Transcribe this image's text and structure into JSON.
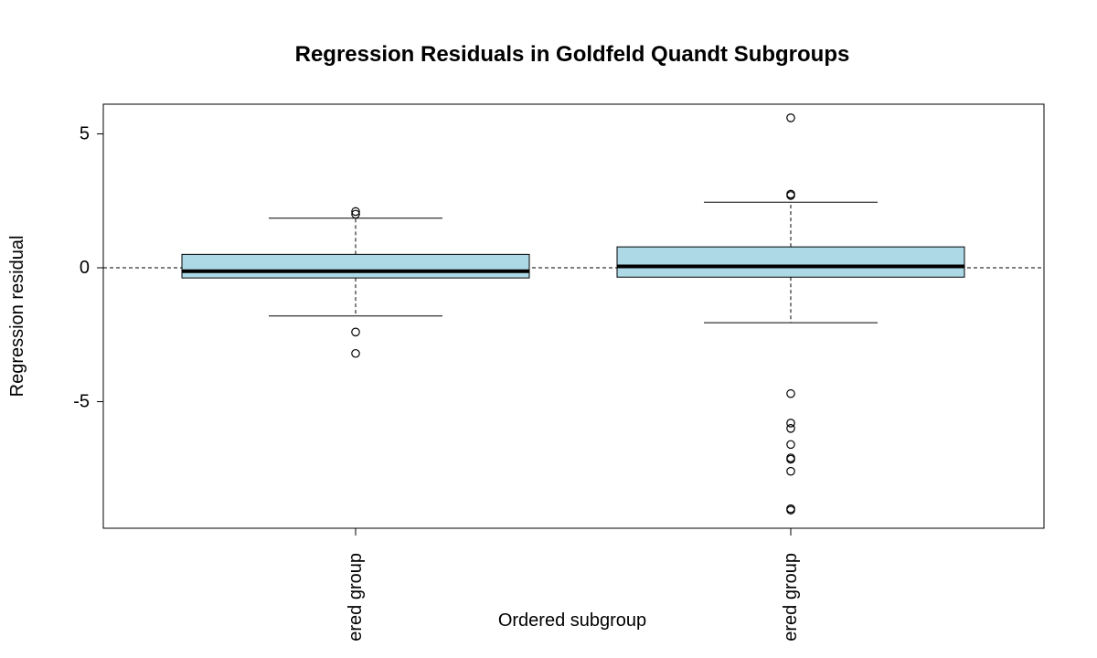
{
  "chart_data": {
    "type": "boxplot",
    "title": "Regression Residuals in Goldfeld Quandt Subgroups",
    "xlabel": "Ordered subgroup",
    "ylabel": "Regression residual",
    "ylim": [
      -9.7,
      6.2
    ],
    "yticks": [
      5,
      0,
      -5
    ],
    "ytick_labels": [
      "5",
      "0",
      "-5"
    ],
    "reference_line": 0,
    "box_color": "#add8e6",
    "categories": [
      "ered group",
      "ered group"
    ],
    "boxes": [
      {
        "whisker_low": -1.8,
        "q1": -0.38,
        "median": -0.13,
        "q3": 0.5,
        "whisker_high": 1.85,
        "outliers": [
          2.1,
          2.0,
          -2.4,
          -3.2
        ]
      },
      {
        "whisker_low": -2.05,
        "q1": -0.35,
        "median": 0.05,
        "q3": 0.78,
        "whisker_high": 2.45,
        "outliers": [
          5.6,
          2.75,
          2.7,
          -4.7,
          -5.8,
          -6.0,
          -6.6,
          -7.1,
          -7.15,
          -7.6,
          -9.0,
          -9.05
        ]
      }
    ]
  }
}
